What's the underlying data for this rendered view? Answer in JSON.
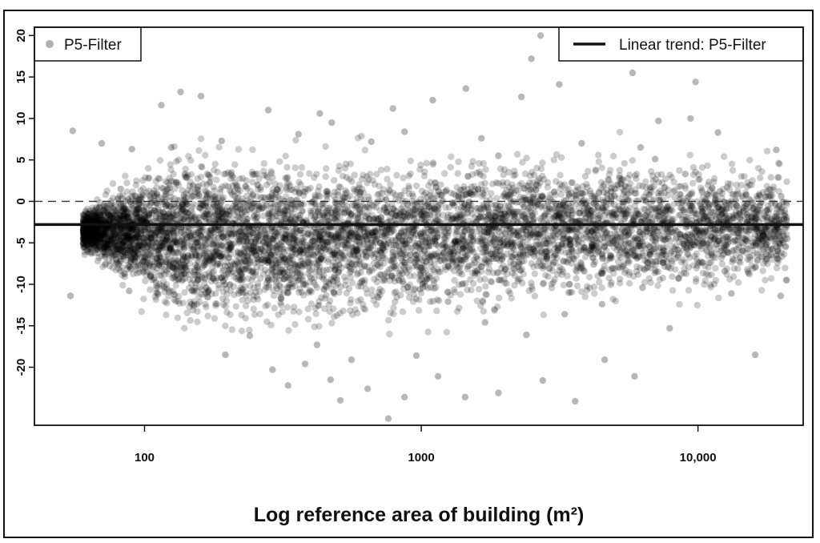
{
  "chart_data": {
    "type": "scatter",
    "xlabel": "Log reference area of building (m²)",
    "ylabel": "",
    "x_scale": "log",
    "xlim": [
      40,
      24000
    ],
    "ylim": [
      -27,
      21
    ],
    "x_ticks": [
      100,
      1000,
      10000
    ],
    "x_tick_labels": [
      "100",
      "1000",
      "10,000"
    ],
    "y_ticks": [
      20,
      15,
      10,
      5,
      0,
      -5,
      -10,
      -15,
      -20
    ],
    "y_tick_labels": [
      "20",
      "15",
      "10",
      "5",
      "0",
      "-5",
      "-10",
      "-15",
      "-20"
    ],
    "grid": false,
    "reference_line": {
      "y": 0,
      "style": "dashed"
    },
    "series": [
      {
        "name": "P5-Filter",
        "marker": "circle",
        "color": "#808080",
        "points": [
          [
            2700,
            20
          ],
          [
            2500,
            17.2
          ],
          [
            5800,
            15.5
          ],
          [
            9800,
            14.4
          ],
          [
            1450,
            13.6
          ],
          [
            3150,
            14.1
          ],
          [
            1100,
            12.2
          ],
          [
            135,
            13.2
          ],
          [
            115,
            11.6
          ],
          [
            160,
            12.7
          ],
          [
            2300,
            12.6
          ],
          [
            280,
            11
          ],
          [
            790,
            11.2
          ],
          [
            430,
            10.6
          ],
          [
            475,
            9.5
          ],
          [
            7200,
            9.7
          ],
          [
            9400,
            10
          ],
          [
            55,
            8.5
          ],
          [
            70,
            7
          ],
          [
            90,
            6.3
          ],
          [
            125,
            6.5
          ],
          [
            190,
            7.3
          ],
          [
            360,
            8.1
          ],
          [
            660,
            7.2
          ],
          [
            870,
            8.4
          ],
          [
            1650,
            7.6
          ],
          [
            3800,
            7
          ],
          [
            6200,
            6.5
          ],
          [
            11800,
            8.3
          ],
          [
            19200,
            6.2
          ],
          [
            68,
            -3.1
          ],
          [
            82,
            1.5
          ],
          [
            1900,
            5.5
          ],
          [
            7000,
            5.1
          ],
          [
            54,
            -11.4
          ],
          [
            88,
            -10.8
          ],
          [
            112,
            -11.2
          ],
          [
            148,
            -12.4
          ],
          [
            196,
            -18.5
          ],
          [
            240,
            -16.2
          ],
          [
            290,
            -20.3
          ],
          [
            330,
            -22.2
          ],
          [
            380,
            -19.6
          ],
          [
            420,
            -17.3
          ],
          [
            470,
            -21.5
          ],
          [
            510,
            -24
          ],
          [
            560,
            -19.1
          ],
          [
            640,
            -22.6
          ],
          [
            760,
            -26.2
          ],
          [
            870,
            -23.6
          ],
          [
            960,
            -18.6
          ],
          [
            1150,
            -21.1
          ],
          [
            1440,
            -23.6
          ],
          [
            1900,
            -23.1
          ],
          [
            2750,
            -21.6
          ],
          [
            3600,
            -24.1
          ],
          [
            4600,
            -19.1
          ],
          [
            5900,
            -21.1
          ],
          [
            7900,
            -15.3
          ],
          [
            13200,
            -11.1
          ],
          [
            16100,
            -18.5
          ],
          [
            19900,
            -11.4
          ],
          [
            21000,
            -4.5
          ],
          [
            18000,
            0.6
          ],
          [
            16200,
            -5.3
          ],
          [
            12500,
            -8.4
          ],
          [
            8500,
            -9.3
          ],
          [
            6300,
            -10.4
          ],
          [
            4500,
            -12.4
          ],
          [
            3300,
            -13.6
          ],
          [
            2400,
            -16.1
          ],
          [
            1700,
            -14.6
          ],
          [
            1250,
            -12.1
          ],
          [
            990,
            -10.6
          ],
          [
            11200,
            -6.3
          ],
          [
            14200,
            -6.8
          ],
          [
            9000,
            3.3
          ],
          [
            12000,
            1.2
          ],
          [
            15000,
            -1.6
          ],
          [
            20000,
            0.6
          ],
          [
            5200,
            2.8
          ],
          [
            4200,
            -7.6
          ]
        ]
      }
    ],
    "trend": {
      "name": "Linear trend: P5-Filter",
      "type": "linear",
      "intercept": -2.8,
      "slope": 0,
      "color": "#111111"
    }
  },
  "legends": {
    "points_label": "P5-Filter",
    "trend_label": "Linear trend: P5-Filter"
  }
}
